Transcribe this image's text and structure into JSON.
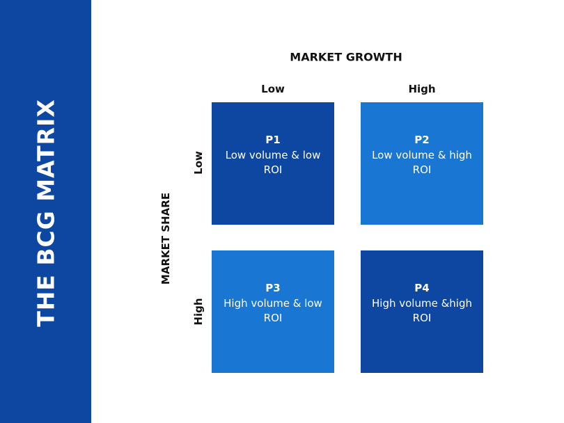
{
  "sidebar": {
    "title": "THE BCG MATRIX"
  },
  "matrix": {
    "x_axis_title": "MARKET GROWTH",
    "y_axis_title": "MARKET SHARE",
    "columns": [
      {
        "label": "Low"
      },
      {
        "label": "High"
      }
    ],
    "rows": [
      {
        "label": "Low"
      },
      {
        "label": "High"
      }
    ],
    "cells": [
      {
        "code": "P1",
        "text": "Low volume & low ROI"
      },
      {
        "code": "P2",
        "text": "Low volume & high ROI"
      },
      {
        "code": "P3",
        "text": "High volume & low ROI"
      },
      {
        "code": "P4",
        "text": "High volume &high ROI"
      }
    ]
  },
  "colors": {
    "dark_blue": "#0d47a1",
    "light_blue": "#1976d2"
  }
}
